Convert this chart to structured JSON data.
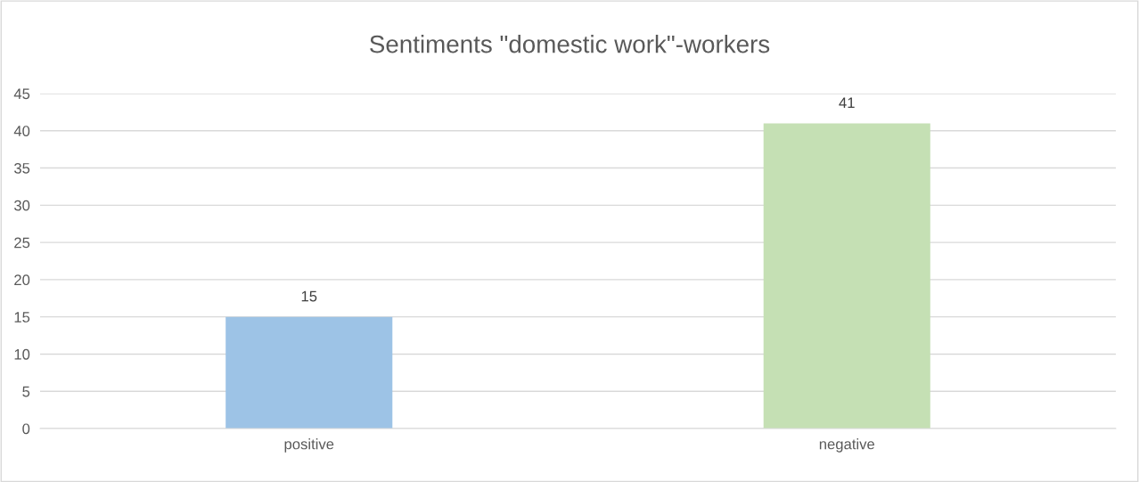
{
  "chart_data": {
    "type": "bar",
    "title": "Sentiments \"domestic work\"-workers",
    "categories": [
      "positive",
      "negative"
    ],
    "values": [
      15,
      41
    ],
    "colors": [
      "#9dc3e6",
      "#c5e0b4"
    ],
    "ylim": [
      0,
      45
    ],
    "yticks": [
      0,
      5,
      10,
      15,
      20,
      25,
      30,
      35,
      40,
      45
    ],
    "grid": "y",
    "data_labels": true,
    "legend": false
  }
}
